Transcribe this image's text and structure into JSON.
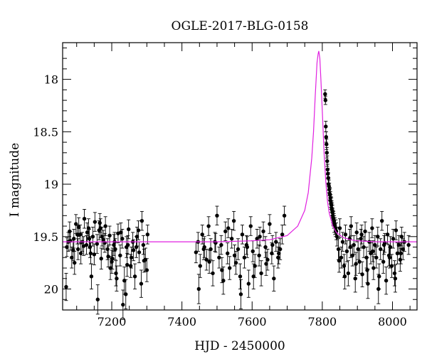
{
  "chart_data": {
    "type": "scatter",
    "title": "OGLE-2017-BLG-0158",
    "xlabel": "HJD - 2450000",
    "ylabel": "I magnitude",
    "xlim": [
      7060,
      8070
    ],
    "ylim": [
      20.2,
      17.65
    ],
    "y_inverted": true,
    "x_ticks": [
      7200,
      7400,
      7600,
      7800,
      8000
    ],
    "x_tick_labels": [
      "7200",
      "7400",
      "7600",
      "7800",
      "8000"
    ],
    "y_ticks": [
      18,
      18.5,
      19,
      19.5,
      20
    ],
    "y_tick_labels": [
      "18",
      "18.5",
      "19",
      "19.5",
      "20"
    ],
    "grid": false,
    "colors": {
      "points": "#000000",
      "model": "#e020e0"
    },
    "model": {
      "baseline": 19.55,
      "t0": 7790,
      "peak": 17.73,
      "x": [
        7060,
        7300,
        7500,
        7600,
        7650,
        7700,
        7730,
        7750,
        7760,
        7770,
        7775,
        7780,
        7785,
        7788,
        7790,
        7793,
        7796,
        7800,
        7805,
        7810,
        7815,
        7820,
        7830,
        7840,
        7860,
        7880,
        7900,
        7950,
        8000,
        8070
      ],
      "y": [
        19.55,
        19.55,
        19.55,
        19.54,
        19.53,
        19.49,
        19.4,
        19.25,
        19.08,
        18.75,
        18.5,
        18.15,
        17.84,
        17.76,
        17.73,
        17.8,
        18.0,
        18.3,
        18.7,
        18.98,
        19.17,
        19.28,
        19.4,
        19.46,
        19.51,
        19.53,
        19.54,
        19.55,
        19.55,
        19.55
      ]
    },
    "series": [
      {
        "x": [
          7072,
          7080,
          7086,
          7092,
          7098,
          7104,
          7110,
          7116,
          7122,
          7128,
          7134,
          7140,
          7146,
          7152,
          7158,
          7164,
          7170,
          7176,
          7182,
          7188,
          7194,
          7200,
          7206,
          7212,
          7218,
          7224,
          7230,
          7236,
          7242,
          7248,
          7254,
          7260,
          7266,
          7272,
          7278,
          7284,
          7290,
          7296,
          7302,
          7076,
          7090,
          7106,
          7120,
          7136,
          7150,
          7166,
          7180,
          7196,
          7210,
          7226,
          7240,
          7256,
          7270,
          7286,
          7300,
          7070,
          7094,
          7130,
          7160,
          7190,
          7214,
          7246,
          7276,
          7082,
          7112,
          7142,
          7172,
          7202,
          7232,
          7262,
          7292,
          7102,
          7138,
          7168,
          7208,
          7244
        ],
        "y": [
          19.6,
          19.45,
          19.7,
          19.52,
          19.38,
          19.62,
          19.48,
          19.55,
          19.33,
          19.58,
          19.42,
          19.66,
          19.5,
          19.36,
          19.57,
          19.44,
          19.71,
          19.53,
          19.4,
          19.62,
          19.49,
          19.74,
          19.58,
          19.85,
          19.47,
          19.68,
          19.52,
          19.92,
          19.6,
          19.43,
          19.78,
          19.55,
          19.88,
          19.5,
          19.65,
          19.95,
          19.58,
          19.72,
          19.48,
          19.55,
          19.63,
          19.41,
          19.59,
          19.52,
          19.67,
          19.37,
          19.56,
          19.8,
          19.62,
          19.46,
          20.05,
          19.7,
          19.6,
          19.35,
          19.82,
          19.98,
          19.75,
          19.46,
          20.1,
          19.69,
          19.9,
          19.58,
          19.44,
          19.54,
          19.66,
          19.88,
          19.5,
          19.71,
          20.15,
          19.63,
          19.73,
          19.48,
          19.6,
          19.42,
          19.55,
          19.77
        ],
        "err": [
          0.09,
          0.09,
          0.1,
          0.09,
          0.09,
          0.1,
          0.09,
          0.09,
          0.09,
          0.09,
          0.09,
          0.1,
          0.09,
          0.09,
          0.09,
          0.09,
          0.1,
          0.09,
          0.09,
          0.1,
          0.09,
          0.11,
          0.1,
          0.12,
          0.09,
          0.1,
          0.09,
          0.13,
          0.1,
          0.09,
          0.11,
          0.09,
          0.12,
          0.09,
          0.1,
          0.13,
          0.09,
          0.11,
          0.09,
          0.09,
          0.1,
          0.09,
          0.09,
          0.09,
          0.1,
          0.09,
          0.09,
          0.11,
          0.1,
          0.09,
          0.14,
          0.1,
          0.1,
          0.09,
          0.11,
          0.13,
          0.11,
          0.09,
          0.14,
          0.1,
          0.12,
          0.09,
          0.09,
          0.09,
          0.1,
          0.12,
          0.09,
          0.1,
          0.14,
          0.1,
          0.11,
          0.09,
          0.1,
          0.09,
          0.09,
          0.11
        ]
      },
      {
        "x": [
          7440,
          7446,
          7452,
          7458,
          7464,
          7470,
          7476,
          7482,
          7488,
          7494,
          7500,
          7506,
          7512,
          7518,
          7524,
          7530,
          7536,
          7542,
          7548,
          7554,
          7560,
          7566,
          7572,
          7578,
          7584,
          7590,
          7596,
          7602,
          7608,
          7614,
          7620,
          7626,
          7632,
          7638,
          7644,
          7650,
          7656,
          7662,
          7668,
          7674,
          7680,
          7686,
          7692,
          7448,
          7462,
          7478,
          7496,
          7514,
          7532,
          7550,
          7568,
          7586,
          7604,
          7622,
          7640,
          7658,
          7676
        ],
        "y": [
          19.65,
          19.55,
          19.78,
          19.48,
          19.6,
          19.72,
          19.4,
          19.62,
          19.85,
          19.55,
          19.3,
          19.7,
          19.58,
          19.92,
          19.45,
          19.66,
          19.8,
          19.52,
          19.35,
          19.75,
          19.62,
          19.88,
          19.48,
          19.7,
          19.58,
          19.95,
          19.4,
          19.64,
          19.78,
          19.52,
          19.68,
          19.85,
          19.45,
          19.6,
          19.72,
          19.38,
          19.66,
          19.9,
          19.55,
          19.7,
          19.62,
          19.48,
          19.3,
          20.0,
          19.62,
          19.74,
          19.56,
          19.82,
          19.42,
          19.68,
          20.05,
          19.6,
          19.88,
          19.5,
          19.76,
          19.58,
          19.66
        ],
        "err": [
          0.1,
          0.09,
          0.11,
          0.09,
          0.1,
          0.1,
          0.09,
          0.1,
          0.12,
          0.09,
          0.09,
          0.1,
          0.09,
          0.13,
          0.09,
          0.1,
          0.11,
          0.09,
          0.09,
          0.11,
          0.1,
          0.12,
          0.09,
          0.1,
          0.09,
          0.13,
          0.09,
          0.1,
          0.11,
          0.09,
          0.1,
          0.12,
          0.09,
          0.1,
          0.1,
          0.09,
          0.1,
          0.12,
          0.09,
          0.1,
          0.1,
          0.09,
          0.09,
          0.14,
          0.1,
          0.11,
          0.09,
          0.12,
          0.09,
          0.1,
          0.14,
          0.1,
          0.12,
          0.09,
          0.11,
          0.09,
          0.1
        ]
      },
      {
        "x": [
          7808,
          7809,
          7810,
          7811,
          7812,
          7813,
          7814,
          7815,
          7816,
          7817,
          7818,
          7819,
          7820,
          7821,
          7822,
          7823,
          7824,
          7825,
          7826,
          7827,
          7828,
          7829,
          7830,
          7831,
          7832,
          7833,
          7834,
          7836,
          7838,
          7840
        ],
        "y": [
          18.14,
          18.2,
          18.45,
          18.55,
          18.62,
          18.7,
          18.78,
          18.86,
          18.9,
          18.94,
          19.0,
          19.02,
          19.05,
          19.09,
          19.1,
          19.13,
          19.16,
          19.18,
          19.2,
          19.23,
          19.25,
          19.27,
          19.3,
          19.32,
          19.33,
          19.35,
          19.38,
          19.4,
          19.42,
          19.45
        ],
        "err": [
          0.04,
          0.04,
          0.05,
          0.05,
          0.05,
          0.05,
          0.05,
          0.05,
          0.05,
          0.05,
          0.06,
          0.06,
          0.06,
          0.06,
          0.06,
          0.06,
          0.06,
          0.06,
          0.07,
          0.07,
          0.07,
          0.07,
          0.07,
          0.07,
          0.07,
          0.07,
          0.08,
          0.08,
          0.08,
          0.08
        ]
      },
      {
        "x": [
          7842,
          7846,
          7850,
          7854,
          7858,
          7862,
          7866,
          7870,
          7874,
          7878,
          7882,
          7886,
          7890,
          7894,
          7898,
          7902,
          7906,
          7910,
          7914,
          7918,
          7922,
          7926,
          7930,
          7934,
          7938,
          7942,
          7946,
          7950,
          7954,
          7958,
          7962,
          7966,
          7970,
          7974,
          7978,
          7982,
          7986,
          7990,
          7994,
          7998,
          8002,
          8006,
          8010,
          8014,
          8018,
          8022,
          8026,
          8030,
          8034,
          8046,
          7848,
          7864,
          7880,
          7896,
          7912,
          7928,
          7944,
          7960,
          7976,
          7992,
          8008,
          8024
        ],
        "y": [
          19.5,
          19.62,
          19.42,
          19.7,
          19.55,
          19.78,
          19.48,
          19.64,
          19.85,
          19.52,
          19.4,
          19.68,
          19.58,
          19.9,
          19.46,
          19.62,
          19.74,
          19.52,
          19.86,
          19.6,
          19.45,
          19.7,
          19.95,
          19.55,
          19.66,
          19.42,
          19.8,
          19.58,
          19.7,
          19.5,
          19.88,
          19.62,
          19.35,
          19.74,
          19.56,
          19.92,
          19.48,
          19.68,
          19.6,
          19.78,
          19.52,
          19.85,
          19.44,
          19.66,
          19.58,
          19.72,
          19.5,
          19.62,
          19.55,
          19.58,
          19.73,
          19.88,
          19.6,
          19.76,
          19.48,
          19.82,
          19.64,
          20.0,
          19.58,
          19.7,
          19.9,
          19.66
        ],
        "err": [
          0.09,
          0.1,
          0.09,
          0.1,
          0.09,
          0.11,
          0.09,
          0.1,
          0.12,
          0.09,
          0.09,
          0.1,
          0.09,
          0.13,
          0.09,
          0.1,
          0.11,
          0.09,
          0.12,
          0.1,
          0.09,
          0.1,
          0.14,
          0.09,
          0.1,
          0.09,
          0.11,
          0.09,
          0.1,
          0.09,
          0.12,
          0.1,
          0.09,
          0.11,
          0.09,
          0.13,
          0.09,
          0.1,
          0.1,
          0.11,
          0.09,
          0.12,
          0.09,
          0.1,
          0.09,
          0.11,
          0.09,
          0.1,
          0.09,
          0.09,
          0.11,
          0.12,
          0.1,
          0.11,
          0.09,
          0.12,
          0.1,
          0.14,
          0.09,
          0.1,
          0.13,
          0.1
        ]
      }
    ]
  }
}
